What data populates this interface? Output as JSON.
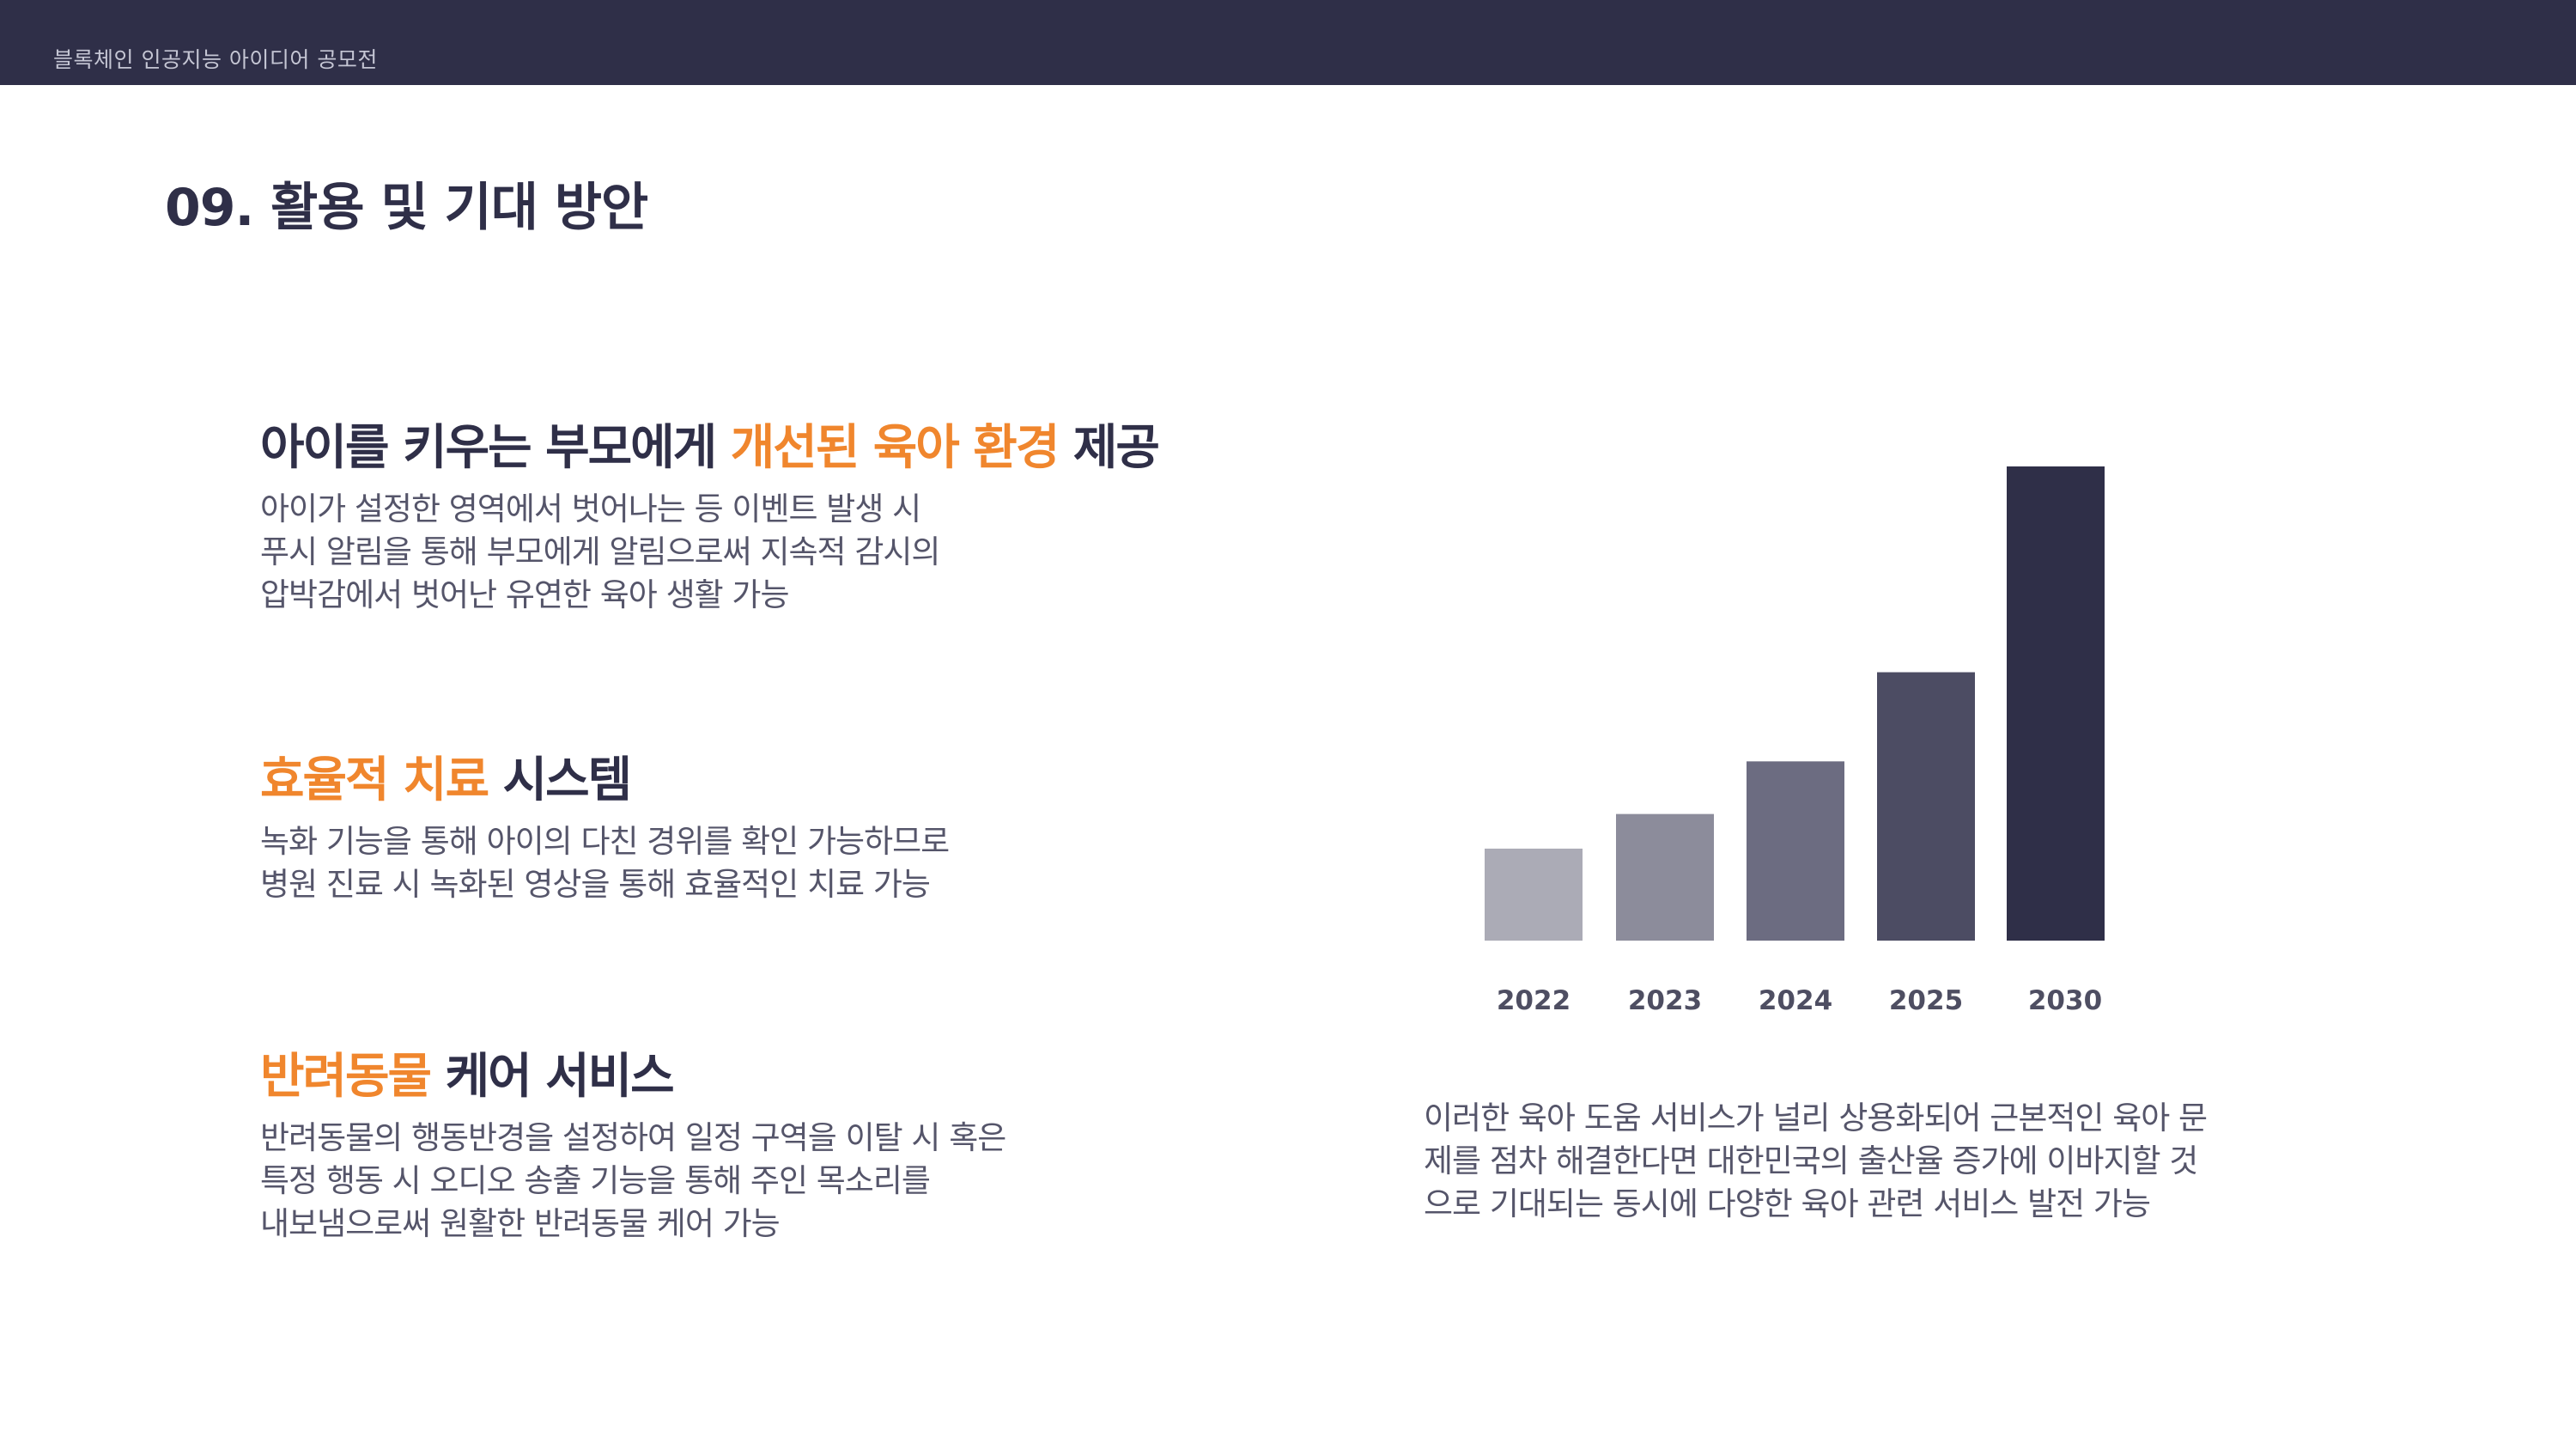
{
  "header": {
    "title": "블록체인 인공지능 아이디어 공모전"
  },
  "page_title": "09. 활용 및 기대 방안",
  "features": [
    {
      "heading": {
        "pre": "아이를 키우는 부모에게 ",
        "accent": "개선된 육아 환경",
        "post": " 제공"
      },
      "lines": [
        "아이가 설정한 영역에서 벗어나는 등 이벤트 발생 시",
        "푸시 알림을 통해 부모에게 알림으로써 지속적 감시의",
        "압박감에서 벗어난 유연한 육아 생활 가능"
      ]
    },
    {
      "heading": {
        "pre": "",
        "accent": "효율적 치료",
        "post": " 시스템"
      },
      "lines": [
        "녹화 기능을 통해 아이의 다친 경위를 확인 가능하므로",
        "병원 진료 시 녹화된 영상을 통해 효율적인 치료 가능"
      ]
    },
    {
      "heading": {
        "pre": "",
        "accent": "반려동물",
        "post": " 케어 서비스"
      },
      "lines": [
        "반려동물의 행동반경을 설정하여 일정 구역을 이탈 시 혹은",
        "특정 행동 시 오디오 송출 기능을 통해 주인 목소리를",
        "내보냄으로써 원활한 반려동물 케어 가능"
      ]
    }
  ],
  "summary": [
    "이러한 육아 도움 서비스가 널리 상용화되어 근본적인 육아 문",
    "제를 점차 해결한다면 대한민국의 출산율 증가에 이바지할 것",
    "으로 기대되는 동시에 다양한 육아 관련 서비스 발전 가능"
  ],
  "colors": {
    "dark": "#2f2f48",
    "accent": "#f0862d"
  },
  "chart_data": {
    "type": "bar",
    "categories": [
      "2022",
      "2023",
      "2024",
      "2025",
      "2030"
    ],
    "values": [
      19.4,
      26.7,
      37.8,
      56.6,
      100
    ],
    "colors": [
      "#ababb6",
      "#8c8c9b",
      "#6c6c81",
      "#4c4c63",
      "#2f2f48"
    ],
    "title": "",
    "xlabel": "",
    "ylabel": "",
    "ylim": [
      0,
      100
    ],
    "grid": false,
    "legend": "none"
  }
}
